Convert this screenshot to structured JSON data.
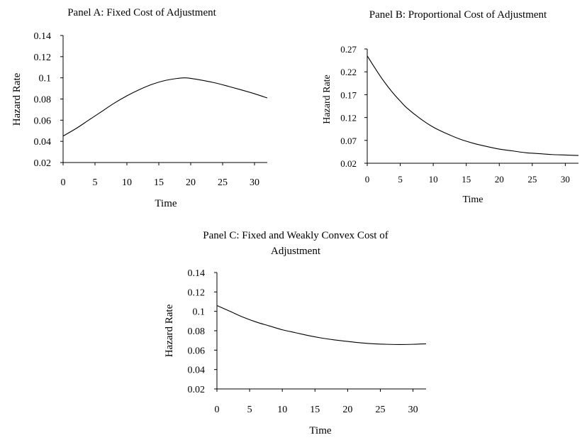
{
  "chart_data": [
    {
      "type": "line",
      "title": "Panel A: Fixed Cost of Adjustment",
      "xlabel": "Time",
      "ylabel": "Hazard Rate",
      "xlim": [
        0,
        32
      ],
      "ylim": [
        0.02,
        0.14
      ],
      "x_ticks": [
        "0",
        "5",
        "10",
        "15",
        "20",
        "25",
        "30"
      ],
      "y_ticks": [
        "0.02",
        "0.04",
        "0.06",
        "0.08",
        "0.1",
        "0.12",
        "0.14"
      ],
      "grid": false,
      "series": [
        {
          "x": [
            0,
            2,
            4,
            6,
            8,
            10,
            12,
            14,
            16,
            18,
            19,
            20,
            22,
            24,
            26,
            28,
            30,
            32
          ],
          "y": [
            0.045,
            0.052,
            0.06,
            0.068,
            0.076,
            0.083,
            0.089,
            0.094,
            0.0975,
            0.0995,
            0.1,
            0.0995,
            0.0975,
            0.095,
            0.0918,
            0.0885,
            0.085,
            0.081
          ]
        }
      ]
    },
    {
      "type": "line",
      "title": "Panel B: Proportional Cost of Adjustment",
      "xlabel": "Time",
      "ylabel": "Hazard Rate",
      "xlim": [
        0,
        32
      ],
      "ylim": [
        0.02,
        0.27
      ],
      "x_ticks": [
        "0",
        "5",
        "10",
        "15",
        "20",
        "25",
        "30"
      ],
      "y_ticks": [
        "0.02",
        "0.07",
        "0.12",
        "0.17",
        "0.22",
        "0.27"
      ],
      "grid": false,
      "series": [
        {
          "x": [
            0,
            1,
            2,
            3,
            4,
            5,
            6,
            8,
            10,
            12,
            14,
            16,
            18,
            20,
            22,
            24,
            26,
            28,
            30,
            32
          ],
          "y": [
            0.255,
            0.232,
            0.21,
            0.19,
            0.172,
            0.156,
            0.141,
            0.118,
            0.099,
            0.085,
            0.073,
            0.064,
            0.057,
            0.051,
            0.047,
            0.043,
            0.041,
            0.039,
            0.038,
            0.037
          ]
        }
      ]
    },
    {
      "type": "line",
      "title": "Panel C: Fixed and Weakly Convex Cost of Adjustment",
      "xlabel": "Time",
      "ylabel": "Hazard Rate",
      "xlim": [
        0,
        32
      ],
      "ylim": [
        0.02,
        0.14
      ],
      "x_ticks": [
        "0",
        "5",
        "10",
        "15",
        "20",
        "25",
        "30"
      ],
      "y_ticks": [
        "0.02",
        "0.04",
        "0.06",
        "0.08",
        "0.1",
        "0.12",
        "0.14"
      ],
      "grid": false,
      "series": [
        {
          "x": [
            0,
            2,
            4,
            6,
            8,
            10,
            12,
            14,
            16,
            18,
            20,
            22,
            24,
            26,
            28,
            30,
            32
          ],
          "y": [
            0.106,
            0.1,
            0.094,
            0.089,
            0.085,
            0.081,
            0.078,
            0.075,
            0.0725,
            0.0705,
            0.069,
            0.0675,
            0.0665,
            0.066,
            0.0658,
            0.066,
            0.0665
          ]
        }
      ]
    }
  ]
}
